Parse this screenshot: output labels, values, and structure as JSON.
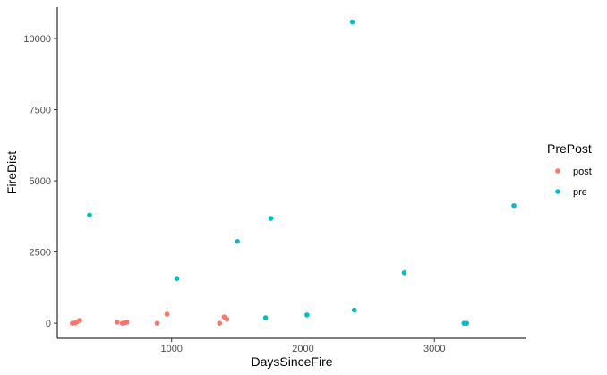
{
  "chart_data": {
    "type": "scatter",
    "xlabel": "DaysSinceFire",
    "ylabel": "FireDist",
    "xlim": [
      130,
      3700
    ],
    "ylim": [
      -530,
      11100
    ],
    "x_ticks": [
      1000,
      2000,
      3000
    ],
    "y_ticks": [
      0,
      2500,
      5000,
      7500,
      10000
    ],
    "grid": false,
    "legend": {
      "title": "PrePost",
      "placement": "right"
    },
    "series": [
      {
        "name": "post",
        "color": "#F8766D",
        "points": [
          [
            245,
            0
          ],
          [
            265,
            10
          ],
          [
            280,
            50
          ],
          [
            300,
            100
          ],
          [
            585,
            40
          ],
          [
            625,
            0
          ],
          [
            645,
            20
          ],
          [
            660,
            40
          ],
          [
            890,
            0
          ],
          [
            965,
            320
          ],
          [
            1365,
            0
          ],
          [
            1400,
            220
          ],
          [
            1420,
            140
          ]
        ]
      },
      {
        "name": "pre",
        "color": "#00BFC4",
        "points": [
          [
            375,
            3800
          ],
          [
            1040,
            1570
          ],
          [
            1500,
            2870
          ],
          [
            1755,
            3680
          ],
          [
            1715,
            190
          ],
          [
            2030,
            290
          ],
          [
            2375,
            10580
          ],
          [
            2390,
            460
          ],
          [
            2770,
            1770
          ],
          [
            3225,
            0
          ],
          [
            3245,
            0
          ],
          [
            3605,
            4130
          ]
        ]
      }
    ]
  }
}
